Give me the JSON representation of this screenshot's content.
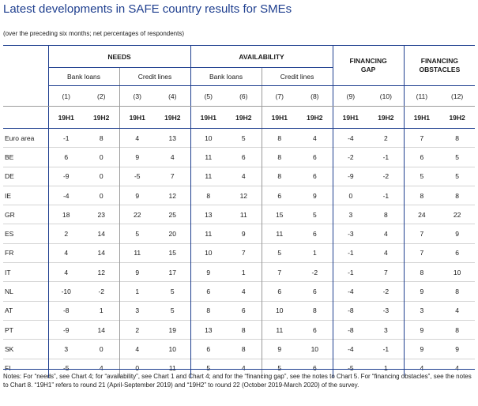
{
  "title": "Latest developments in SAFE country results for SMEs",
  "subtitle": "(over the preceding six months; net percentages of respondents)",
  "groups": {
    "needs": "NEEDS",
    "availability": "AVAILABILITY",
    "financing_gap_line1": "FINANCING",
    "financing_gap_line2": "GAP",
    "financing_obstacles_line1": "FINANCING",
    "financing_obstacles_line2": "OBSTACLES"
  },
  "subgroups": {
    "needs_bank_loans": "Bank loans",
    "needs_credit_lines": "Credit lines",
    "avail_bank_loans": "Bank loans",
    "avail_credit_lines": "Credit lines"
  },
  "column_numbers": [
    "(1)",
    "(2)",
    "(3)",
    "(4)",
    "(5)",
    "(6)",
    "(7)",
    "(8)",
    "(9)",
    "(10)",
    "(11)",
    "(12)"
  ],
  "periods": [
    "19H1",
    "19H2",
    "19H1",
    "19H2",
    "19H1",
    "19H2",
    "19H1",
    "19H2",
    "19H1",
    "19H2",
    "19H1",
    "19H2"
  ],
  "rows": [
    {
      "label": "Euro area",
      "values": [
        "-1",
        "8",
        "4",
        "13",
        "10",
        "5",
        "8",
        "4",
        "-4",
        "2",
        "7",
        "8"
      ]
    },
    {
      "label": "BE",
      "values": [
        "6",
        "0",
        "9",
        "4",
        "11",
        "6",
        "8",
        "6",
        "-2",
        "-1",
        "6",
        "5"
      ]
    },
    {
      "label": "DE",
      "values": [
        "-9",
        "0",
        "-5",
        "7",
        "11",
        "4",
        "8",
        "6",
        "-9",
        "-2",
        "5",
        "5"
      ]
    },
    {
      "label": "IE",
      "values": [
        "-4",
        "0",
        "9",
        "12",
        "8",
        "12",
        "6",
        "9",
        "0",
        "-1",
        "8",
        "8"
      ]
    },
    {
      "label": "GR",
      "values": [
        "18",
        "23",
        "22",
        "25",
        "13",
        "11",
        "15",
        "5",
        "3",
        "8",
        "24",
        "22"
      ]
    },
    {
      "label": "ES",
      "values": [
        "2",
        "14",
        "5",
        "20",
        "11",
        "9",
        "11",
        "6",
        "-3",
        "4",
        "7",
        "9"
      ]
    },
    {
      "label": "FR",
      "values": [
        "4",
        "14",
        "11",
        "15",
        "10",
        "7",
        "5",
        "1",
        "-1",
        "4",
        "7",
        "6"
      ]
    },
    {
      "label": "IT",
      "values": [
        "4",
        "12",
        "9",
        "17",
        "9",
        "1",
        "7",
        "-2",
        "-1",
        "7",
        "8",
        "10"
      ]
    },
    {
      "label": "NL",
      "values": [
        "-10",
        "-2",
        "1",
        "5",
        "6",
        "4",
        "6",
        "6",
        "-4",
        "-2",
        "9",
        "8"
      ]
    },
    {
      "label": "AT",
      "values": [
        "-8",
        "1",
        "3",
        "5",
        "8",
        "6",
        "10",
        "8",
        "-8",
        "-3",
        "3",
        "4"
      ]
    },
    {
      "label": "PT",
      "values": [
        "-9",
        "14",
        "2",
        "19",
        "13",
        "8",
        "11",
        "6",
        "-8",
        "3",
        "9",
        "8"
      ]
    },
    {
      "label": "SK",
      "values": [
        "3",
        "0",
        "4",
        "10",
        "6",
        "8",
        "9",
        "10",
        "-4",
        "-1",
        "9",
        "9"
      ]
    },
    {
      "label": "FI",
      "values": [
        "-5",
        "4",
        "0",
        "11",
        "5",
        "4",
        "5",
        "6",
        "-5",
        "1",
        "4",
        "4"
      ]
    }
  ],
  "notes": "Notes: For “needs”, see Chart 4; for “availability”, see Chart 1 and Chart 4; and for the “financing gap”, see the notes to Chart 5. For “financing obstacles”, see the notes to Chart 8. “19H1” refers to round 21 (April-September 2019) and “19H2” to round 22 (October 2019-March 2020) of the survey.",
  "colors": {
    "accent": "#1f3f8f",
    "rule_grey": "#9b9b9b"
  }
}
